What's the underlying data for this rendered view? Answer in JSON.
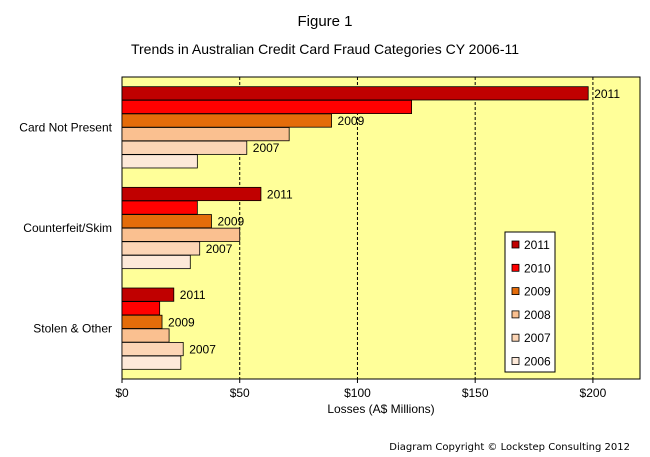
{
  "figure_label": "Figure 1",
  "copyright": "Diagram Copyright © Lockstep Consulting 2012",
  "chart_data": {
    "type": "bar",
    "orientation": "horizontal",
    "title": "Trends in Australian Credit Card Fraud Categories CY 2006-11",
    "xlabel": "Losses (A$ Millions)",
    "ylabel": "",
    "xlim": [
      0,
      220
    ],
    "x_ticks": [
      0,
      50,
      100,
      150,
      200
    ],
    "x_tick_labels": [
      "$0",
      "$50",
      "$100",
      "$150",
      "$200"
    ],
    "grid": true,
    "plot_background": "#ffff99",
    "legend_position": "bottom-right",
    "categories": [
      "Card Not Present",
      "Counterfeit/Skim",
      "Stolen & Other"
    ],
    "series": [
      {
        "name": "2011",
        "color": "#c00000",
        "values": [
          198,
          59,
          22
        ]
      },
      {
        "name": "2010",
        "color": "#ff0000",
        "values": [
          123,
          32,
          16
        ]
      },
      {
        "name": "2009",
        "color": "#e46c0a",
        "values": [
          89,
          38,
          17
        ]
      },
      {
        "name": "2008",
        "color": "#fac090",
        "values": [
          71,
          50,
          20
        ]
      },
      {
        "name": "2007",
        "color": "#fcd5b5",
        "values": [
          53,
          33,
          26
        ]
      },
      {
        "name": "2006",
        "color": "#fde9d9",
        "values": [
          32,
          29,
          25
        ]
      }
    ],
    "bar_labels": [
      "2011",
      "2009",
      "2007"
    ]
  }
}
